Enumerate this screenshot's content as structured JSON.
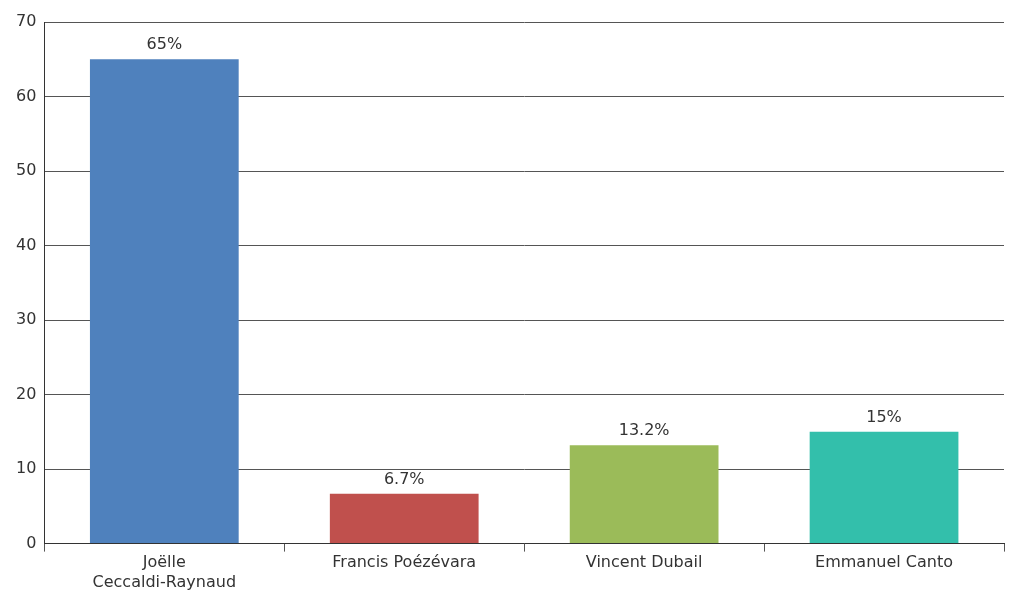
{
  "chart_data": {
    "type": "bar",
    "categories": [
      "Joëlle Ceccaldi-Raynaud",
      "Francis Poézévara",
      "Vincent Dubail",
      "Emmanuel Canto"
    ],
    "values": [
      65,
      6.7,
      13.2,
      15
    ],
    "value_labels": [
      "65%",
      "6.7%",
      "13.2%",
      "15%"
    ],
    "colors": [
      "#4f81bd",
      "#c0504d",
      "#9bbb59",
      "#33bfab"
    ],
    "ylim": [
      0,
      70
    ],
    "yticks": [
      0,
      10,
      20,
      30,
      40,
      50,
      60,
      70
    ],
    "grid": true,
    "data_labels": true
  }
}
